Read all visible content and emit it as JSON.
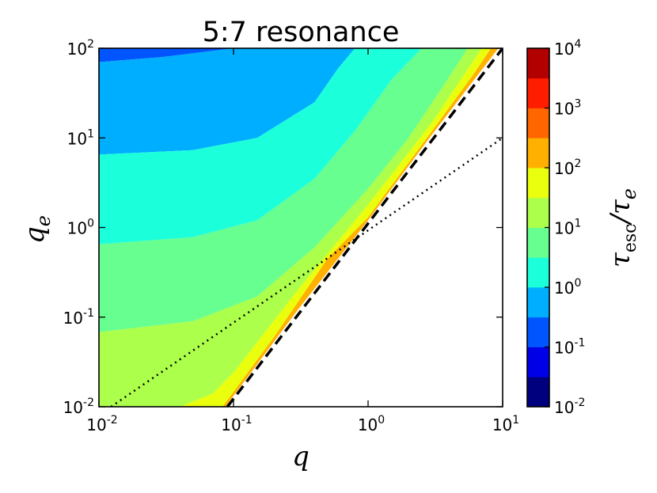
{
  "chart_data": {
    "type": "contour",
    "title": "5:7 resonance",
    "xlabel": "q",
    "ylabel": "q",
    "ylabel_subscript": "e",
    "xscale": "log",
    "yscale": "log",
    "xlim": [
      0.01,
      10
    ],
    "ylim": [
      0.01,
      100
    ],
    "x_ticks": [
      {
        "base": "10",
        "exp": "-2"
      },
      {
        "base": "10",
        "exp": "-1"
      },
      {
        "base": "10",
        "exp": "0"
      },
      {
        "base": "10",
        "exp": "1"
      }
    ],
    "y_ticks": [
      {
        "base": "10",
        "exp": "-2"
      },
      {
        "base": "10",
        "exp": "-1"
      },
      {
        "base": "10",
        "exp": "0"
      },
      {
        "base": "10",
        "exp": "1"
      },
      {
        "base": "10",
        "exp": "2"
      }
    ],
    "colorbar": {
      "label": "τ",
      "label_sub1": "esc",
      "label_sep": "/τ",
      "label_sub2": "e",
      "scale": "log",
      "range": [
        0.01,
        10000
      ],
      "ticks": [
        {
          "base": "10",
          "exp": "-2"
        },
        {
          "base": "10",
          "exp": "-1"
        },
        {
          "base": "10",
          "exp": "0"
        },
        {
          "base": "10",
          "exp": "1"
        },
        {
          "base": "10",
          "exp": "2"
        },
        {
          "base": "10",
          "exp": "3"
        },
        {
          "base": "10",
          "exp": "4"
        }
      ],
      "level_colors": [
        "#00007f",
        "#0000e6",
        "#0055ff",
        "#00aeff",
        "#1cffdb",
        "#66ff90",
        "#acff4a",
        "#eaff0d",
        "#ffb000",
        "#ff6600",
        "#ff1d00",
        "#b20000"
      ]
    },
    "contour_boundaries": [
      {
        "level": "10^-1.5",
        "points": [
          [
            0.01,
            70
          ],
          [
            0.03,
            80
          ],
          [
            0.1,
            100
          ]
        ]
      },
      {
        "level": "10^-1",
        "points": [
          [
            0.01,
            6.5
          ],
          [
            0.05,
            7.3
          ],
          [
            0.15,
            10
          ],
          [
            0.4,
            25
          ],
          [
            0.6,
            60
          ],
          [
            0.8,
            100
          ]
        ]
      },
      {
        "level": "10^-0.5",
        "points": [
          [
            0.01,
            0.65
          ],
          [
            0.05,
            0.78
          ],
          [
            0.15,
            1.2
          ],
          [
            0.4,
            3.5
          ],
          [
            0.8,
            12
          ],
          [
            1.5,
            45
          ],
          [
            2.5,
            100
          ]
        ]
      },
      {
        "level": "10^0",
        "points": [
          [
            0.01,
            0.068
          ],
          [
            0.05,
            0.09
          ],
          [
            0.15,
            0.17
          ],
          [
            0.4,
            0.6
          ],
          [
            1,
            2.7
          ],
          [
            2,
            10
          ],
          [
            3.5,
            35
          ],
          [
            5.5,
            100
          ]
        ]
      },
      {
        "level": "10^0.5",
        "points": [
          [
            0.04,
            0.01
          ],
          [
            0.07,
            0.014
          ],
          [
            0.1,
            0.024
          ],
          [
            0.3,
            0.2
          ],
          [
            1,
            1.8
          ],
          [
            3,
            15
          ],
          [
            7,
            100
          ]
        ]
      },
      {
        "level": "10^1",
        "points": [
          [
            0.083,
            0.01
          ],
          [
            0.2,
            0.06
          ],
          [
            0.5,
            0.45
          ],
          [
            1,
            1.3
          ],
          [
            3,
            12
          ],
          [
            6,
            50
          ],
          [
            8.2,
            100
          ]
        ]
      },
      {
        "level": "10^1.5",
        "points": [
          [
            0.087,
            0.01
          ],
          [
            0.3,
            0.12
          ],
          [
            1,
            1.2
          ],
          [
            3,
            11
          ],
          [
            9.3,
            100
          ]
        ]
      }
    ],
    "stable_boundary_dashed": {
      "points": [
        [
          0.09,
          0.01
        ],
        [
          10,
          100
        ]
      ]
    },
    "dotted_line": {
      "points": [
        [
          0.0123,
          0.01
        ],
        [
          10,
          10
        ]
      ]
    }
  }
}
